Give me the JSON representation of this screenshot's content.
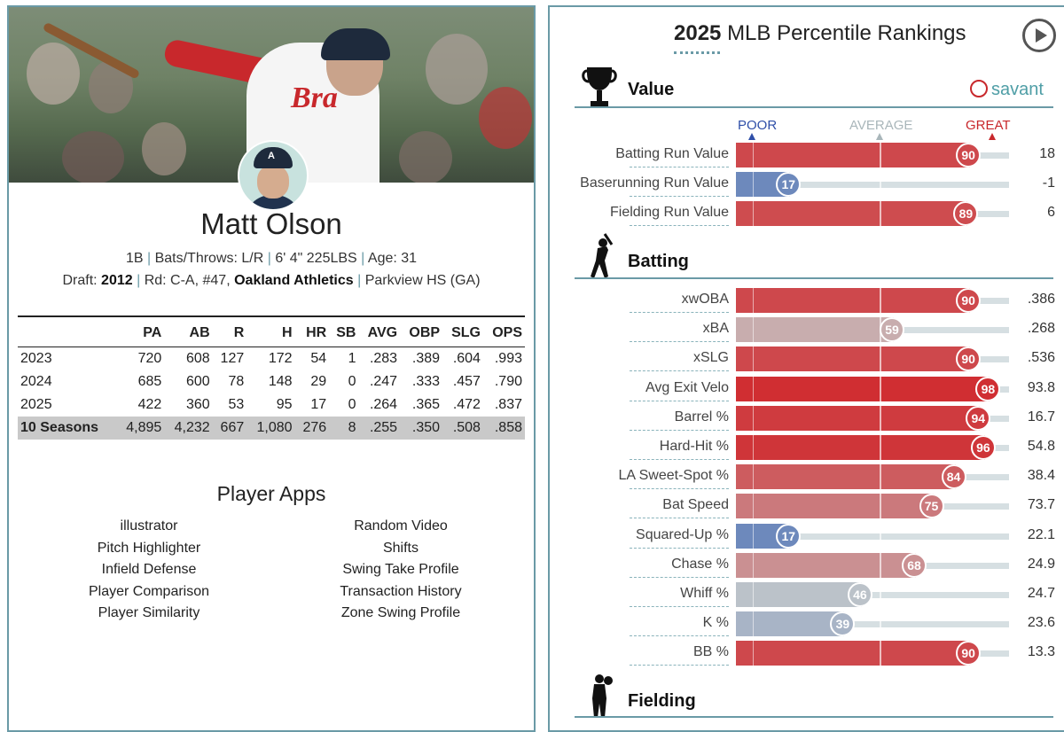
{
  "player": {
    "name": "Matt Olson",
    "position": "1B",
    "bats_throws": "Bats/Throws: L/R",
    "height_weight": "6' 4\" 225LBS",
    "age": "Age: 31",
    "draft_label": "Draft:",
    "draft_year": "2012",
    "draft_round": "Rd: C-A, #47,",
    "draft_team": "Oakland Athletics",
    "school": "Parkview HS (GA)",
    "jersey_text": "Bra"
  },
  "stats": {
    "headers": [
      "",
      "PA",
      "AB",
      "R",
      "H",
      "HR",
      "SB",
      "AVG",
      "OBP",
      "SLG",
      "OPS"
    ],
    "rows": [
      [
        "2023",
        "720",
        "608",
        "127",
        "172",
        "54",
        "1",
        ".283",
        ".389",
        ".604",
        ".993"
      ],
      [
        "2024",
        "685",
        "600",
        "78",
        "148",
        "29",
        "0",
        ".247",
        ".333",
        ".457",
        ".790"
      ],
      [
        "2025",
        "422",
        "360",
        "53",
        "95",
        "17",
        "0",
        ".264",
        ".365",
        ".472",
        ".837"
      ]
    ],
    "career": [
      "10 Seasons",
      "4,895",
      "4,232",
      "667",
      "1,080",
      "276",
      "8",
      ".255",
      ".350",
      ".508",
      ".858"
    ]
  },
  "apps": {
    "title": "Player Apps",
    "left": [
      "illustrator",
      "Pitch Highlighter",
      "Infield Defense",
      "Player Comparison",
      "Player Similarity"
    ],
    "right": [
      "Random Video",
      "Shifts",
      "Swing Take Profile",
      "Transaction History",
      "Zone Swing Profile"
    ]
  },
  "rankings": {
    "year": "2025",
    "title": "MLB Percentile Rankings",
    "brand": "savant",
    "scale": {
      "poor": "POOR",
      "average": "AVERAGE",
      "great": "GREAT"
    },
    "sections": {
      "value": "Value",
      "batting": "Batting",
      "fielding": "Fielding"
    },
    "value_metrics": [
      {
        "label": "Batting Run Value",
        "pct": 90,
        "value": "18"
      },
      {
        "label": "Baserunning Run Value",
        "pct": 17,
        "value": "-1"
      },
      {
        "label": "Fielding Run Value",
        "pct": 89,
        "value": "6"
      }
    ],
    "batting_metrics": [
      {
        "label": "xwOBA",
        "pct": 90,
        "value": ".386"
      },
      {
        "label": "xBA",
        "pct": 59,
        "value": ".268"
      },
      {
        "label": "xSLG",
        "pct": 90,
        "value": ".536"
      },
      {
        "label": "Avg Exit Velo",
        "pct": 98,
        "value": "93.8"
      },
      {
        "label": "Barrel %",
        "pct": 94,
        "value": "16.7"
      },
      {
        "label": "Hard-Hit %",
        "pct": 96,
        "value": "54.8"
      },
      {
        "label": "LA Sweet-Spot %",
        "pct": 84,
        "value": "38.4"
      },
      {
        "label": "Bat Speed",
        "pct": 75,
        "value": "73.7"
      },
      {
        "label": "Squared-Up %",
        "pct": 17,
        "value": "22.1"
      },
      {
        "label": "Chase %",
        "pct": 68,
        "value": "24.9"
      },
      {
        "label": "Whiff %",
        "pct": 46,
        "value": "24.7"
      },
      {
        "label": "K %",
        "pct": 39,
        "value": "23.6"
      },
      {
        "label": "BB %",
        "pct": 90,
        "value": "13.3"
      }
    ]
  }
}
